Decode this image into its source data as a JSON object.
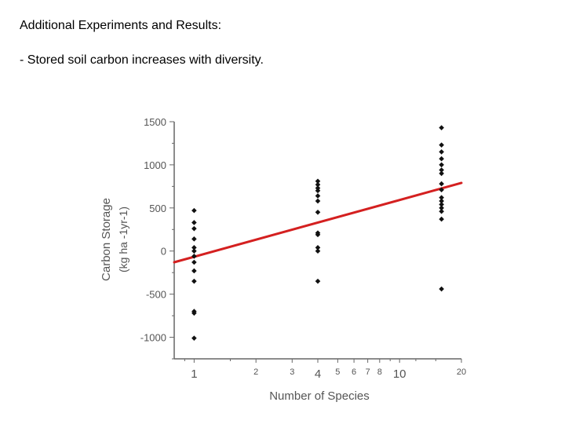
{
  "slide": {
    "heading": "Additional Experiments and Results:",
    "bullet": "- Stored soil carbon increases with diversity."
  },
  "chart_data": {
    "type": "scatter",
    "title": "",
    "xlabel": "Number of Species",
    "ylabel": "Carbon Storage",
    "ylabel_units": "(kg ha -1yr-1)",
    "x_scale": "log",
    "xlim": [
      0.8,
      20
    ],
    "ylim": [
      -1250,
      1500
    ],
    "x_tick_labels": [
      1,
      2,
      3,
      4,
      5,
      6,
      7,
      8,
      10,
      20
    ],
    "y_tick_labels": [
      1500,
      1000,
      500,
      0,
      -500,
      -1000
    ],
    "grid": false,
    "legend": "none",
    "series": [
      {
        "marker_color": "#111111",
        "points": [
          {
            "x": 1,
            "y": 470
          },
          {
            "x": 1,
            "y": 330
          },
          {
            "x": 1,
            "y": 260
          },
          {
            "x": 1,
            "y": 140
          },
          {
            "x": 1,
            "y": 40
          },
          {
            "x": 1,
            "y": 0
          },
          {
            "x": 1,
            "y": -60
          },
          {
            "x": 1,
            "y": -130
          },
          {
            "x": 1,
            "y": -230
          },
          {
            "x": 1,
            "y": -350
          },
          {
            "x": 1,
            "y": -700
          },
          {
            "x": 1,
            "y": -720
          },
          {
            "x": 1,
            "y": -1010
          },
          {
            "x": 4,
            "y": 810
          },
          {
            "x": 4,
            "y": 770
          },
          {
            "x": 4,
            "y": 730
          },
          {
            "x": 4,
            "y": 700
          },
          {
            "x": 4,
            "y": 640
          },
          {
            "x": 4,
            "y": 580
          },
          {
            "x": 4,
            "y": 450
          },
          {
            "x": 4,
            "y": 210
          },
          {
            "x": 4,
            "y": 190
          },
          {
            "x": 4,
            "y": 40
          },
          {
            "x": 4,
            "y": 0
          },
          {
            "x": 4,
            "y": -350
          },
          {
            "x": 16,
            "y": 1430
          },
          {
            "x": 16,
            "y": 1230
          },
          {
            "x": 16,
            "y": 1150
          },
          {
            "x": 16,
            "y": 1070
          },
          {
            "x": 16,
            "y": 1000
          },
          {
            "x": 16,
            "y": 940
          },
          {
            "x": 16,
            "y": 900
          },
          {
            "x": 16,
            "y": 780
          },
          {
            "x": 16,
            "y": 710
          },
          {
            "x": 16,
            "y": 620
          },
          {
            "x": 16,
            "y": 580
          },
          {
            "x": 16,
            "y": 540
          },
          {
            "x": 16,
            "y": 500
          },
          {
            "x": 16,
            "y": 460
          },
          {
            "x": 16,
            "y": 370
          },
          {
            "x": 16,
            "y": -440
          }
        ]
      }
    ],
    "trend_line": {
      "color": "#d42020",
      "points": [
        {
          "x": 0.8,
          "y": -130
        },
        {
          "x": 20,
          "y": 790
        }
      ]
    }
  }
}
